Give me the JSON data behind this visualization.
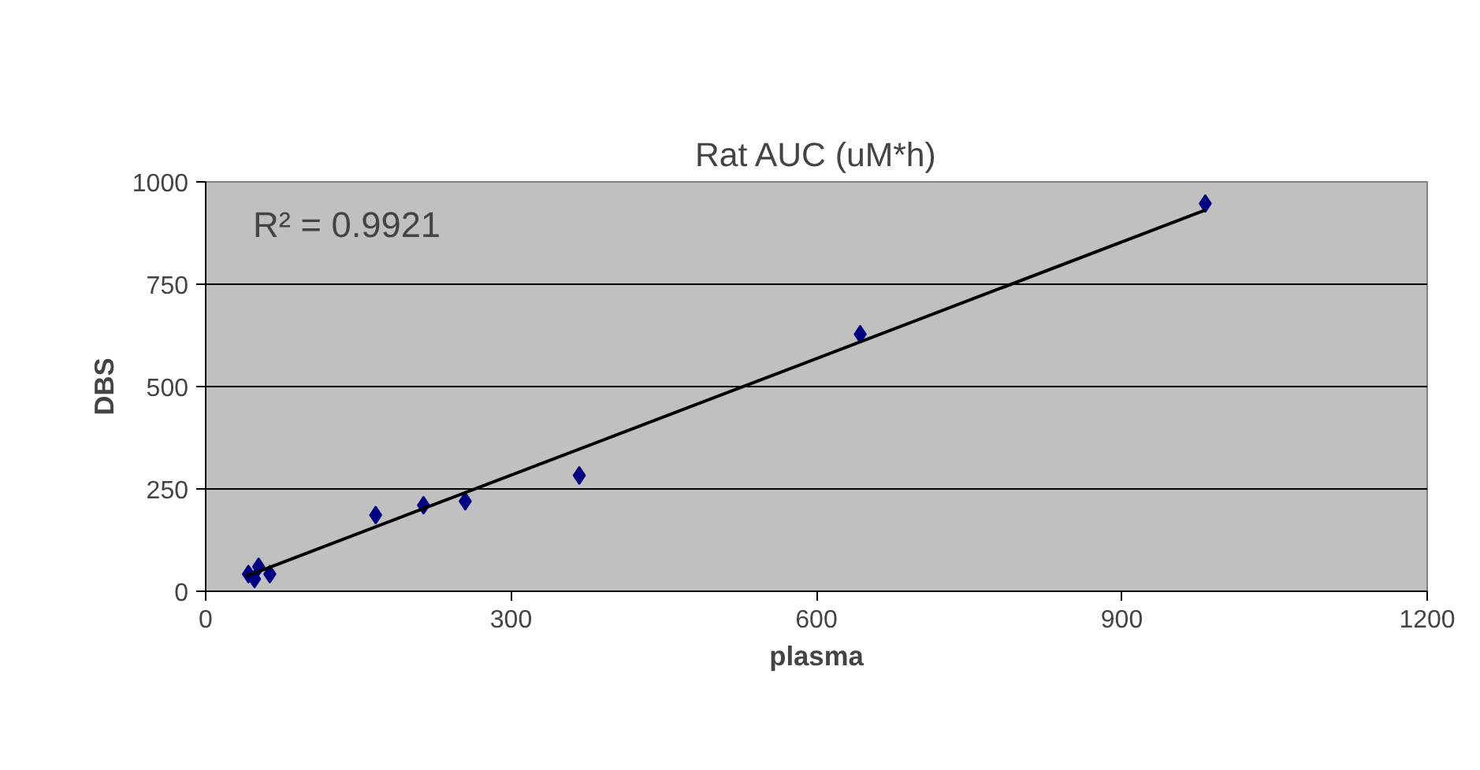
{
  "chart_data": {
    "type": "scatter",
    "title": "Rat AUC (uM*h)",
    "xlabel": "plasma",
    "ylabel": "DBS",
    "xlim": [
      0,
      1200
    ],
    "ylim": [
      0,
      1000
    ],
    "xticks": [
      0,
      300,
      600,
      900,
      1200
    ],
    "yticks": [
      0,
      250,
      500,
      750,
      1000
    ],
    "grid": "y",
    "marker": "diamond",
    "series": [
      {
        "color": "#000080",
        "x": [
          42,
          52,
          48,
          63,
          167,
          214,
          255,
          367,
          643,
          982
        ],
        "values": [
          42,
          60,
          30,
          42,
          186,
          210,
          220,
          283,
          628,
          947
        ]
      },
      {
        "type": "line",
        "color": "#000000",
        "line_style": "solid",
        "marker": "none",
        "x": [
          40,
          982
        ],
        "values": [
          37,
          931
        ]
      }
    ],
    "annotations": [
      "R² = 0.9921"
    ]
  }
}
